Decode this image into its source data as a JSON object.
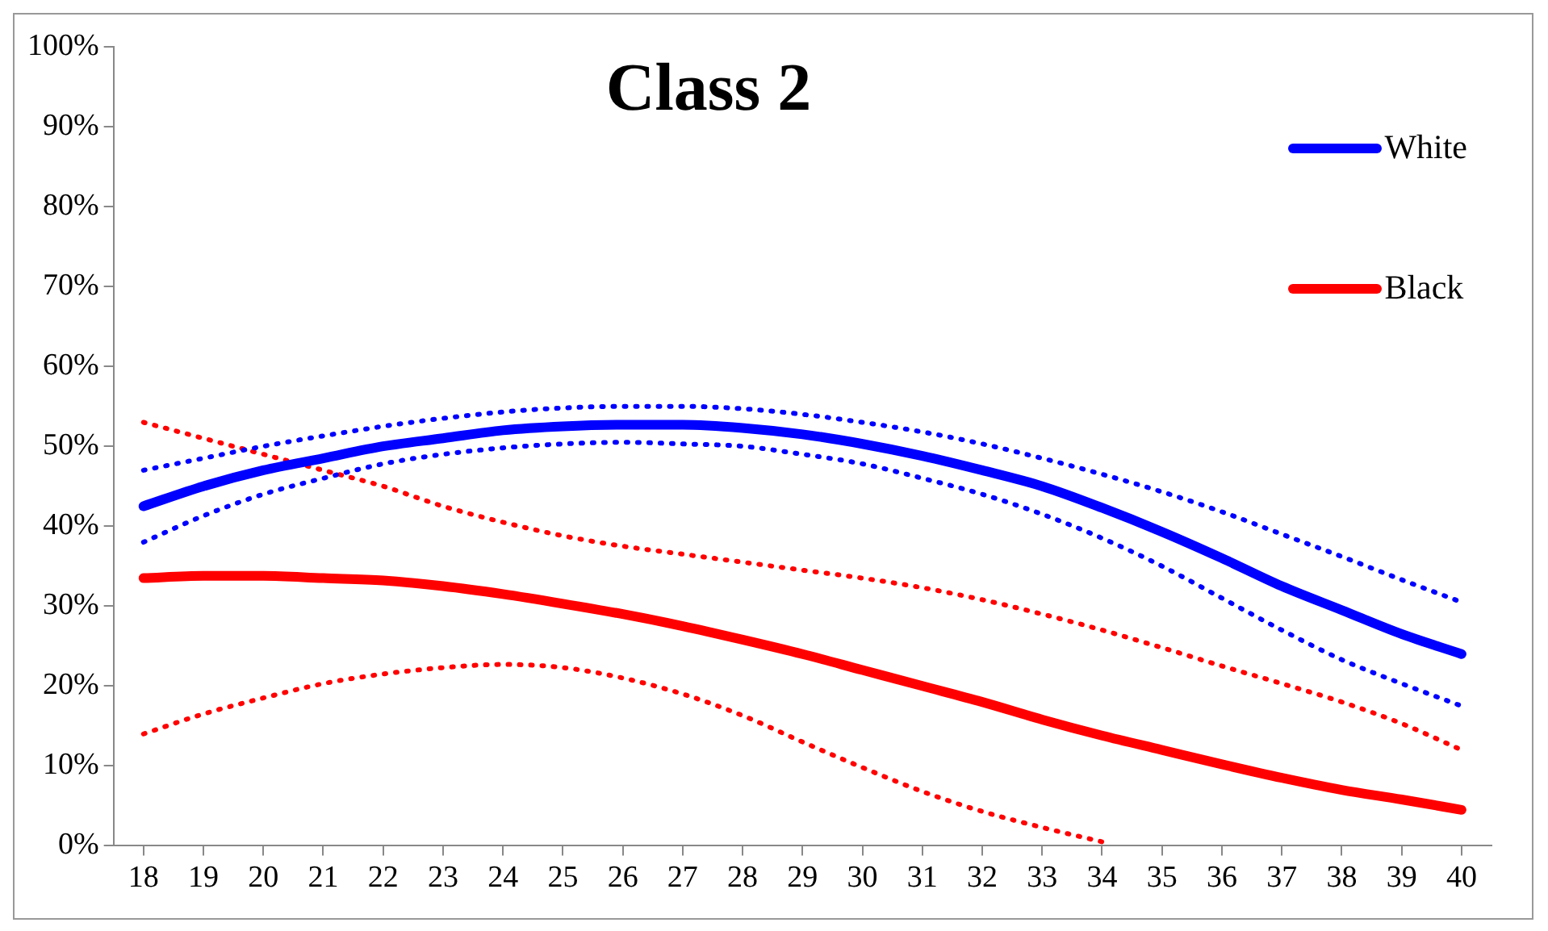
{
  "chart_data": {
    "type": "line",
    "title": "Class 2",
    "categories": [
      "18",
      "19",
      "20",
      "21",
      "22",
      "23",
      "24",
      "25",
      "26",
      "27",
      "28",
      "29",
      "30",
      "31",
      "32",
      "33",
      "34",
      "35",
      "36",
      "37",
      "38",
      "39",
      "40"
    ],
    "ylim": [
      0,
      1
    ],
    "yticks": [
      {
        "value": 0,
        "label": "0%"
      },
      {
        "value": 0.1,
        "label": "10%"
      },
      {
        "value": 0.2,
        "label": "20%"
      },
      {
        "value": 0.3,
        "label": "30%"
      },
      {
        "value": 0.4,
        "label": "40%"
      },
      {
        "value": 0.5,
        "label": "50%"
      },
      {
        "value": 0.6,
        "label": "60%"
      },
      {
        "value": 0.7,
        "label": "70%"
      },
      {
        "value": 0.8,
        "label": "80%"
      },
      {
        "value": 0.9,
        "label": "90%"
      },
      {
        "value": 1,
        "label": "100%"
      }
    ],
    "grid": false,
    "legend": "top right",
    "line_style": "solid",
    "marker": "none",
    "series": [
      {
        "name": "White",
        "color": "#0000ff",
        "values": [
          0.425,
          0.45,
          0.47,
          0.485,
          0.5,
          0.51,
          0.52,
          0.525,
          0.527,
          0.527,
          0.523,
          0.515,
          0.503,
          0.488,
          0.47,
          0.45,
          0.423,
          0.393,
          0.36,
          0.325,
          0.295,
          0.265,
          0.24
        ]
      },
      {
        "color": "#0000ff",
        "line_style": "dotted",
        "values": [
          0.47,
          0.485,
          0.5,
          0.513,
          0.525,
          0.535,
          0.543,
          0.548,
          0.55,
          0.55,
          0.547,
          0.54,
          0.53,
          0.518,
          0.503,
          0.485,
          0.465,
          0.443,
          0.418,
          0.39,
          0.362,
          0.333,
          0.305
        ]
      },
      {
        "color": "#0000ff",
        "line_style": "dotted",
        "values": [
          0.38,
          0.413,
          0.44,
          0.46,
          0.478,
          0.49,
          0.498,
          0.503,
          0.505,
          0.503,
          0.5,
          0.49,
          0.478,
          0.46,
          0.44,
          0.415,
          0.385,
          0.35,
          0.31,
          0.27,
          0.233,
          0.203,
          0.175
        ]
      },
      {
        "name": "Black",
        "color": "#ff0000",
        "values": [
          0.335,
          0.338,
          0.338,
          0.335,
          0.332,
          0.325,
          0.315,
          0.303,
          0.29,
          0.275,
          0.258,
          0.24,
          0.22,
          0.2,
          0.18,
          0.158,
          0.138,
          0.12,
          0.102,
          0.085,
          0.07,
          0.058,
          0.045
        ]
      },
      {
        "color": "#ff0000",
        "line_style": "dotted",
        "values": [
          0.53,
          0.51,
          0.49,
          0.47,
          0.45,
          0.425,
          0.405,
          0.388,
          0.375,
          0.365,
          0.355,
          0.345,
          0.335,
          0.323,
          0.308,
          0.29,
          0.27,
          0.248,
          0.225,
          0.203,
          0.18,
          0.153,
          0.12
        ]
      },
      {
        "color": "#ff0000",
        "line_style": "dotted",
        "values": [
          0.14,
          0.165,
          0.185,
          0.203,
          0.215,
          0.223,
          0.227,
          0.223,
          0.21,
          0.19,
          0.163,
          0.13,
          0.098,
          0.068,
          0.043,
          0.023,
          0.005,
          null,
          null,
          null,
          null,
          null,
          null
        ]
      }
    ]
  }
}
